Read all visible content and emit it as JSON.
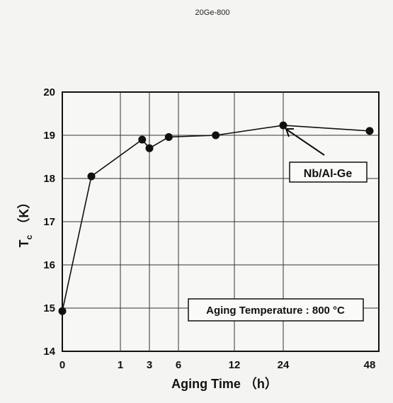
{
  "header": {
    "title": "20Ge-800"
  },
  "chart_data": {
    "type": "line",
    "title": "20Ge-800",
    "xlabel": "Aging Time （h）",
    "ylabel_main": "T",
    "ylabel_sub": "c",
    "ylabel_unit": "（K）",
    "x_tick_labels": [
      "0",
      "1",
      "3",
      "6",
      "12",
      "24",
      "48"
    ],
    "y_tick_labels": [
      "14",
      "15",
      "16",
      "17",
      "18",
      "19",
      "20"
    ],
    "ylim": [
      14,
      20
    ],
    "grid": true,
    "series": [
      {
        "name": "Nb/Al-Ge",
        "points": [
          {
            "x": 0,
            "y": 14.93
          },
          {
            "x": 0.5,
            "y": 18.05
          },
          {
            "x": 2.5,
            "y": 18.9
          },
          {
            "x": 3,
            "y": 18.7
          },
          {
            "x": 5,
            "y": 18.96
          },
          {
            "x": 10,
            "y": 19.0
          },
          {
            "x": 24,
            "y": 19.23
          },
          {
            "x": 48,
            "y": 19.1
          }
        ]
      }
    ],
    "annotations": {
      "series_label": "Nb/Al-Ge",
      "condition_label": "Aging Temperature :  800 °C"
    }
  }
}
